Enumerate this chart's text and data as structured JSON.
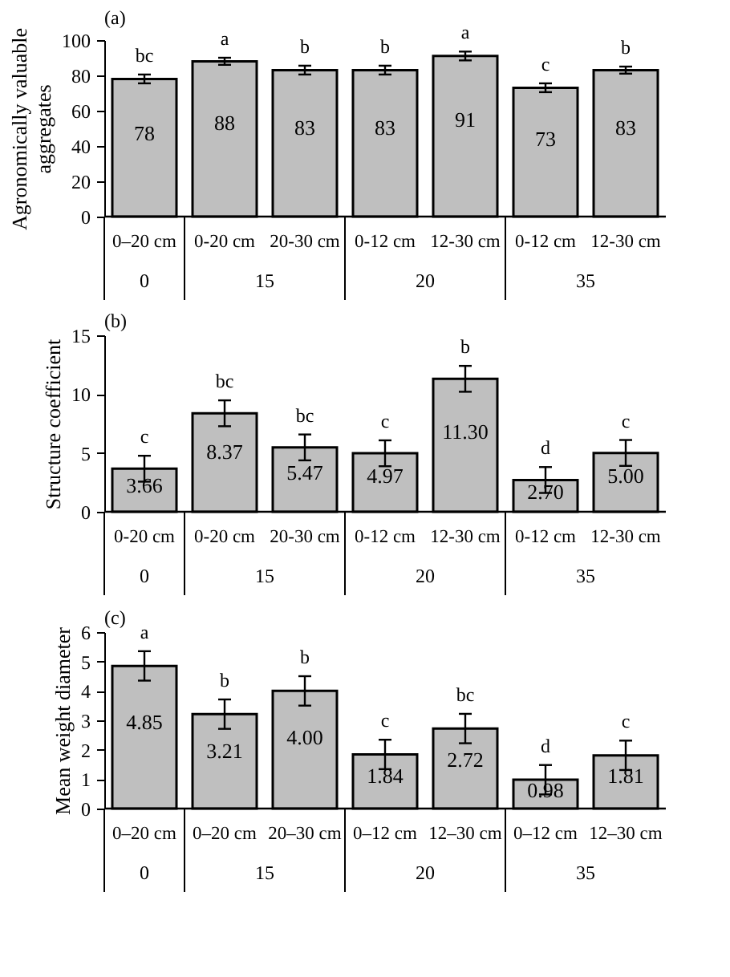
{
  "chart_data": [
    {
      "type": "bar",
      "title": "(a)",
      "ylabel": "Agronomically valuable aggregates",
      "categories": [
        "0–20 cm",
        "0-20 cm",
        "20-30 cm",
        "0-12 cm",
        "12-30 cm",
        "0-12 cm",
        "12-30 cm"
      ],
      "values": [
        78,
        88,
        83,
        83,
        91,
        73,
        83
      ],
      "errors": [
        2.5,
        2,
        2.5,
        2.5,
        2.5,
        2.5,
        2
      ],
      "color": "#bfbfbf",
      "data_labels": true,
      "ylim": [
        0,
        100
      ],
      "yticks": [
        0,
        20,
        40,
        60,
        80,
        100
      ],
      "grid": false,
      "annotations": [
        "bc",
        "a",
        "b",
        "b",
        "a",
        "c",
        "b",
        "0",
        "15",
        "20",
        "35"
      ]
    },
    {
      "type": "bar",
      "title": "(b)",
      "ylabel": "Structure coefficient",
      "categories": [
        "0-20 cm",
        "0-20 cm",
        "20-30 cm",
        "0-12 cm",
        "12-30 cm",
        "0-12 cm",
        "12-30 cm"
      ],
      "values": [
        3.66,
        8.37,
        5.47,
        4.97,
        11.3,
        2.7,
        5.0
      ],
      "value_labels": [
        "3.66",
        "8.37",
        "5.47",
        "4.97",
        "11.30",
        "2.70",
        "5.00"
      ],
      "errors": [
        1.1,
        1.1,
        1.1,
        1.1,
        1.1,
        1.1,
        1.1
      ],
      "color": "#bfbfbf",
      "ylim": [
        0,
        15
      ],
      "yticks": [
        0,
        5,
        10,
        15
      ],
      "grid": false,
      "annotations": [
        "c",
        "bc",
        "bc",
        "c",
        "b",
        "d",
        "c",
        "0",
        "15",
        "20",
        "35"
      ]
    },
    {
      "type": "bar",
      "title": "(c)",
      "ylabel": "Mean weight diameter",
      "categories": [
        "0–20 cm",
        "0–20 cm",
        "20–30 cm",
        "0–12 cm",
        "12–30 cm",
        "0–12 cm",
        "12–30 cm"
      ],
      "values": [
        4.85,
        3.21,
        4.0,
        1.84,
        2.72,
        0.98,
        1.81
      ],
      "value_labels": [
        "4.85",
        "3.21",
        "4.00",
        "1.84",
        "2.72",
        "0.98",
        "1.81"
      ],
      "errors": [
        0.5,
        0.5,
        0.5,
        0.5,
        0.5,
        0.5,
        0.5
      ],
      "color": "#bfbfbf",
      "ylim": [
        0,
        6
      ],
      "yticks": [
        0,
        1,
        2,
        3,
        4,
        5,
        6
      ],
      "grid": false,
      "annotations": [
        "a",
        "b",
        "b",
        "c",
        "bc",
        "d",
        "c",
        "0",
        "15",
        "20",
        "35"
      ]
    }
  ]
}
